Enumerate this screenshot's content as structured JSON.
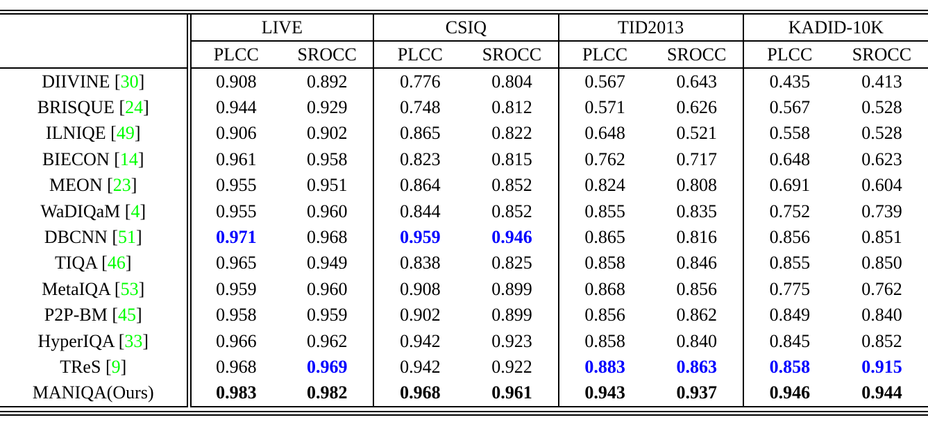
{
  "colors": {
    "citation_green": "#00ff00",
    "second_best_blue": "#0000ff",
    "text_black": "#000000"
  },
  "style_legend": {
    "n": "normal black",
    "blue": "second-best result (blue bold)",
    "bold": "best result (black bold)"
  },
  "header": {
    "datasets": [
      "LIVE",
      "CSIQ",
      "TID2013",
      "KADID-10K"
    ],
    "metrics": [
      "PLCC",
      "SROCC"
    ]
  },
  "rows": [
    {
      "method": "DIIVINE",
      "citation": "30",
      "values": [
        "0.908",
        "0.892",
        "0.776",
        "0.804",
        "0.567",
        "0.643",
        "0.435",
        "0.413"
      ],
      "styles": [
        "n",
        "n",
        "n",
        "n",
        "n",
        "n",
        "n",
        "n"
      ]
    },
    {
      "method": "BRISQUE",
      "citation": "24",
      "values": [
        "0.944",
        "0.929",
        "0.748",
        "0.812",
        "0.571",
        "0.626",
        "0.567",
        "0.528"
      ],
      "styles": [
        "n",
        "n",
        "n",
        "n",
        "n",
        "n",
        "n",
        "n"
      ]
    },
    {
      "method": "ILNIQE",
      "citation": "49",
      "values": [
        "0.906",
        "0.902",
        "0.865",
        "0.822",
        "0.648",
        "0.521",
        "0.558",
        "0.528"
      ],
      "styles": [
        "n",
        "n",
        "n",
        "n",
        "n",
        "n",
        "n",
        "n"
      ]
    },
    {
      "method": "BIECON",
      "citation": "14",
      "values": [
        "0.961",
        "0.958",
        "0.823",
        "0.815",
        "0.762",
        "0.717",
        "0.648",
        "0.623"
      ],
      "styles": [
        "n",
        "n",
        "n",
        "n",
        "n",
        "n",
        "n",
        "n"
      ]
    },
    {
      "method": "MEON",
      "citation": "23",
      "values": [
        "0.955",
        "0.951",
        "0.864",
        "0.852",
        "0.824",
        "0.808",
        "0.691",
        "0.604"
      ],
      "styles": [
        "n",
        "n",
        "n",
        "n",
        "n",
        "n",
        "n",
        "n"
      ]
    },
    {
      "method": "WaDIQaM",
      "citation": "4",
      "values": [
        "0.955",
        "0.960",
        "0.844",
        "0.852",
        "0.855",
        "0.835",
        "0.752",
        "0.739"
      ],
      "styles": [
        "n",
        "n",
        "n",
        "n",
        "n",
        "n",
        "n",
        "n"
      ]
    },
    {
      "method": "DBCNN",
      "citation": "51",
      "values": [
        "0.971",
        "0.968",
        "0.959",
        "0.946",
        "0.865",
        "0.816",
        "0.856",
        "0.851"
      ],
      "styles": [
        "blue",
        "n",
        "blue",
        "blue",
        "n",
        "n",
        "n",
        "n"
      ]
    },
    {
      "method": "TIQA",
      "citation": "46",
      "values": [
        "0.965",
        "0.949",
        "0.838",
        "0.825",
        "0.858",
        "0.846",
        "0.855",
        "0.850"
      ],
      "styles": [
        "n",
        "n",
        "n",
        "n",
        "n",
        "n",
        "n",
        "n"
      ]
    },
    {
      "method": "MetaIQA",
      "citation": "53",
      "values": [
        "0.959",
        "0.960",
        "0.908",
        "0.899",
        "0.868",
        "0.856",
        "0.775",
        "0.762"
      ],
      "styles": [
        "n",
        "n",
        "n",
        "n",
        "n",
        "n",
        "n",
        "n"
      ]
    },
    {
      "method": "P2P-BM",
      "citation": "45",
      "values": [
        "0.958",
        "0.959",
        "0.902",
        "0.899",
        "0.856",
        "0.862",
        "0.849",
        "0.840"
      ],
      "styles": [
        "n",
        "n",
        "n",
        "n",
        "n",
        "n",
        "n",
        "n"
      ]
    },
    {
      "method": "HyperIQA",
      "citation": "33",
      "values": [
        "0.966",
        "0.962",
        "0.942",
        "0.923",
        "0.858",
        "0.840",
        "0.845",
        "0.852"
      ],
      "styles": [
        "n",
        "n",
        "n",
        "n",
        "n",
        "n",
        "n",
        "n"
      ]
    },
    {
      "method": "TReS",
      "citation": "9",
      "values": [
        "0.968",
        "0.969",
        "0.942",
        "0.922",
        "0.883",
        "0.863",
        "0.858",
        "0.915"
      ],
      "styles": [
        "n",
        "blue",
        "n",
        "n",
        "blue",
        "blue",
        "blue",
        "blue"
      ]
    },
    {
      "method": "MANIQA(Ours)",
      "citation": null,
      "values": [
        "0.983",
        "0.982",
        "0.968",
        "0.961",
        "0.943",
        "0.937",
        "0.946",
        "0.944"
      ],
      "styles": [
        "bold",
        "bold",
        "bold",
        "bold",
        "bold",
        "bold",
        "bold",
        "bold"
      ]
    }
  ]
}
